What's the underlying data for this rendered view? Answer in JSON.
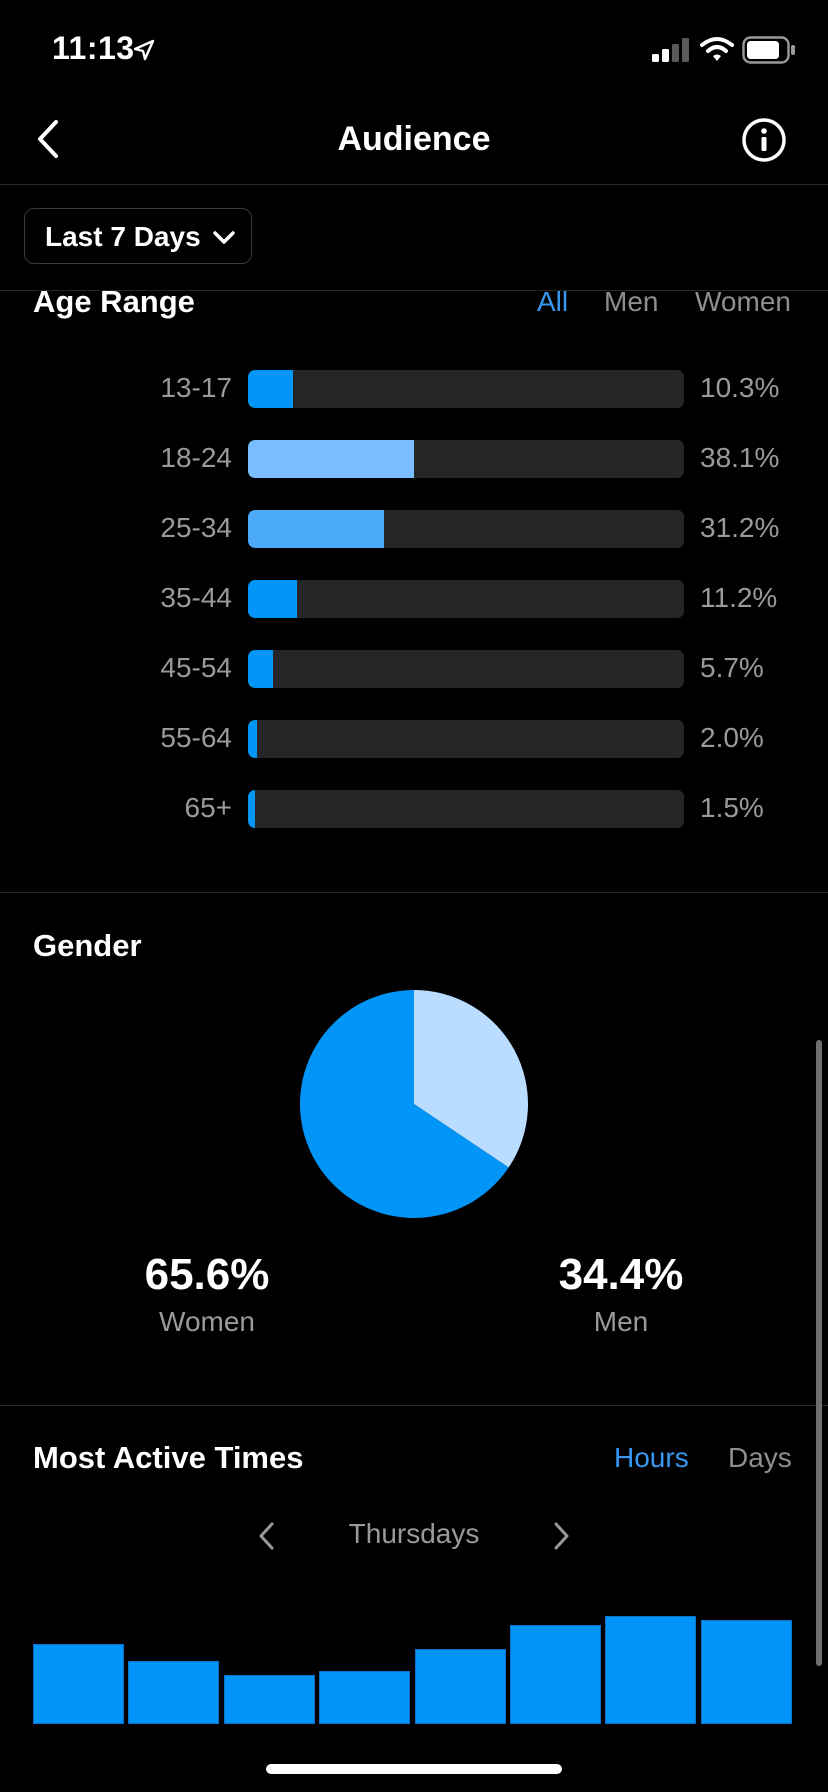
{
  "status_bar": {
    "time": "11:13"
  },
  "header": {
    "title": "Audience"
  },
  "date_filter": {
    "label": "Last 7 Days"
  },
  "age_range": {
    "title": "Age Range",
    "tabs": [
      {
        "label": "All",
        "active": true
      },
      {
        "label": "Men",
        "active": false
      },
      {
        "label": "Women",
        "active": false
      }
    ],
    "rows": [
      {
        "label": "13-17",
        "value": "10.3%",
        "percent": 10.3,
        "color": "#0095f6"
      },
      {
        "label": "18-24",
        "value": "38.1%",
        "percent": 38.1,
        "color": "#79bfff"
      },
      {
        "label": "25-34",
        "value": "31.2%",
        "percent": 31.2,
        "color": "#4aa9f8"
      },
      {
        "label": "35-44",
        "value": "11.2%",
        "percent": 11.2,
        "color": "#0095f6"
      },
      {
        "label": "45-54",
        "value": "5.7%",
        "percent": 5.7,
        "color": "#0095f6"
      },
      {
        "label": "55-64",
        "value": "2.0%",
        "percent": 2.0,
        "color": "#0095f6"
      },
      {
        "label": "65+",
        "value": "1.5%",
        "percent": 1.5,
        "color": "#0095f6"
      }
    ]
  },
  "gender": {
    "title": "Gender",
    "women": {
      "value": "65.6%",
      "label": "Women",
      "percent": 65.6,
      "color": "#0095f6"
    },
    "men": {
      "value": "34.4%",
      "label": "Men",
      "percent": 34.4,
      "color": "#b9dcff"
    }
  },
  "most_active": {
    "title": "Most Active Times",
    "tabs": [
      {
        "label": "Hours",
        "active": true
      },
      {
        "label": "Days",
        "active": false
      }
    ],
    "day": "Thursdays",
    "bar_color": "#0095f6",
    "bars": [
      0.74,
      0.58,
      0.45,
      0.49,
      0.69,
      0.92,
      1.0,
      0.96
    ]
  },
  "colors": {
    "accent": "#3897f0",
    "track": "#262626",
    "muted_text": "#9a9a9a"
  }
}
